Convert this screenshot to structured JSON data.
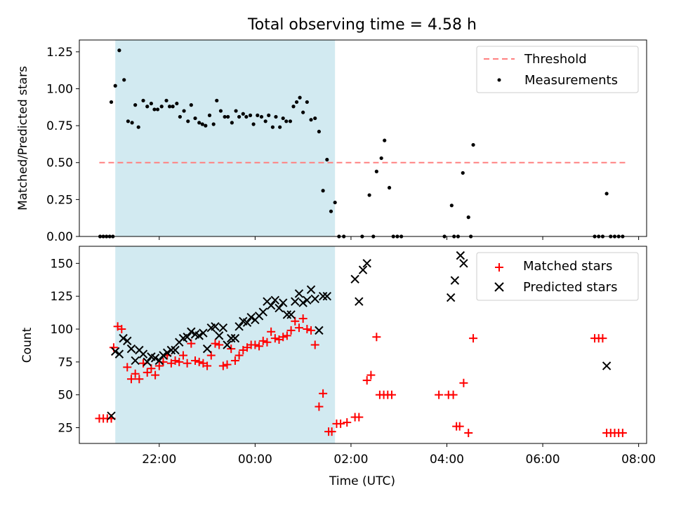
{
  "figure": {
    "title": "Total observing time = 4.58 h",
    "xlabel": "Time (UTC)",
    "shaded_interval": [
      "21:05",
      "01:40"
    ],
    "colors": {
      "shade": "#add8e6",
      "threshold": "#ff8080",
      "measurements": "#000000",
      "matched": "#ff0000",
      "predicted": "#000000"
    }
  },
  "chart_data": [
    {
      "type": "scatter",
      "ylabel": "Matched/Predicted stars",
      "xlim": [
        "20:20",
        "08:10"
      ],
      "ylim": [
        0,
        1.33
      ],
      "yticks": [
        0.0,
        0.25,
        0.5,
        0.75,
        1.0,
        1.25
      ],
      "ytick_labels": [
        "0.00",
        "0.25",
        "0.50",
        "0.75",
        "1.00",
        "1.25"
      ],
      "x_axis_labels_shown": false,
      "legend": "top-right",
      "threshold": {
        "name": "Threshold",
        "value": 0.5,
        "x": [
          "20:45",
          "07:45"
        ]
      },
      "series": [
        {
          "name": "Measurements",
          "marker": "dot",
          "points": [
            [
              "20:46",
              0
            ],
            [
              "20:50",
              0
            ],
            [
              "20:54",
              0
            ],
            [
              "20:58",
              0
            ],
            [
              "21:02",
              0
            ],
            [
              "21:00",
              0.91
            ],
            [
              "21:05",
              1.02
            ],
            [
              "21:10",
              1.26
            ],
            [
              "21:16",
              1.06
            ],
            [
              "21:21",
              0.78
            ],
            [
              "21:26",
              0.77
            ],
            [
              "21:30",
              0.89
            ],
            [
              "21:34",
              0.74
            ],
            [
              "21:40",
              0.92
            ],
            [
              "21:45",
              0.88
            ],
            [
              "21:50",
              0.9
            ],
            [
              "21:54",
              0.86
            ],
            [
              "21:58",
              0.86
            ],
            [
              "22:03",
              0.88
            ],
            [
              "22:09",
              0.92
            ],
            [
              "22:13",
              0.88
            ],
            [
              "22:17",
              0.88
            ],
            [
              "22:22",
              0.9
            ],
            [
              "22:26",
              0.81
            ],
            [
              "22:31",
              0.85
            ],
            [
              "22:36",
              0.78
            ],
            [
              "22:40",
              0.89
            ],
            [
              "22:45",
              0.8
            ],
            [
              "22:50",
              0.77
            ],
            [
              "22:54",
              0.76
            ],
            [
              "22:58",
              0.75
            ],
            [
              "23:03",
              0.82
            ],
            [
              "23:08",
              0.76
            ],
            [
              "23:12",
              0.92
            ],
            [
              "23:17",
              0.85
            ],
            [
              "23:22",
              0.81
            ],
            [
              "23:26",
              0.81
            ],
            [
              "23:31",
              0.77
            ],
            [
              "23:36",
              0.85
            ],
            [
              "23:40",
              0.81
            ],
            [
              "23:45",
              0.83
            ],
            [
              "23:49",
              0.81
            ],
            [
              "23:54",
              0.82
            ],
            [
              "23:58",
              0.76
            ],
            [
              "00:03",
              0.82
            ],
            [
              "00:08",
              0.81
            ],
            [
              "00:13",
              0.78
            ],
            [
              "00:17",
              0.82
            ],
            [
              "00:22",
              0.74
            ],
            [
              "00:26",
              0.81
            ],
            [
              "00:31",
              0.74
            ],
            [
              "00:35",
              0.8
            ],
            [
              "00:39",
              0.78
            ],
            [
              "00:44",
              0.78
            ],
            [
              "00:48",
              0.88
            ],
            [
              "00:52",
              0.91
            ],
            [
              "00:56",
              0.94
            ],
            [
              "01:00",
              0.84
            ],
            [
              "01:05",
              0.91
            ],
            [
              "01:10",
              0.79
            ],
            [
              "01:15",
              0.8
            ],
            [
              "01:20",
              0.71
            ],
            [
              "01:25",
              0.31
            ],
            [
              "01:30",
              0.52
            ],
            [
              "01:35",
              0.17
            ],
            [
              "01:40",
              0.23
            ],
            [
              "01:45",
              0
            ],
            [
              "01:51",
              0
            ],
            [
              "02:14",
              0
            ],
            [
              "02:23",
              0.28
            ],
            [
              "02:28",
              0
            ],
            [
              "02:32",
              0.44
            ],
            [
              "02:38",
              0.53
            ],
            [
              "02:42",
              0.65
            ],
            [
              "02:48",
              0.33
            ],
            [
              "02:53",
              0
            ],
            [
              "02:58",
              0
            ],
            [
              "03:03",
              0
            ],
            [
              "03:57",
              0
            ],
            [
              "04:06",
              0.21
            ],
            [
              "04:09",
              0
            ],
            [
              "04:14",
              0
            ],
            [
              "04:20",
              0.43
            ],
            [
              "04:27",
              0.13
            ],
            [
              "04:30",
              0
            ],
            [
              "04:33",
              0.62
            ],
            [
              "07:05",
              0
            ],
            [
              "07:10",
              0
            ],
            [
              "07:15",
              0
            ],
            [
              "07:20",
              0.29
            ],
            [
              "07:25",
              0
            ],
            [
              "07:30",
              0
            ],
            [
              "07:35",
              0
            ],
            [
              "07:40",
              0
            ]
          ]
        }
      ]
    },
    {
      "type": "scatter",
      "ylabel": "Count",
      "xlim": [
        "20:20",
        "08:10"
      ],
      "ylim": [
        13,
        163
      ],
      "yticks": [
        25,
        50,
        75,
        100,
        125,
        150
      ],
      "ytick_labels": [
        "25",
        "50",
        "75",
        "100",
        "125",
        "150"
      ],
      "xticks": [
        "22:00",
        "00:00",
        "02:00",
        "04:00",
        "06:00",
        "08:00"
      ],
      "xtick_labels": [
        "22:00",
        "00:00",
        "02:00",
        "04:00",
        "06:00",
        "08:00"
      ],
      "legend": "top-right",
      "series": [
        {
          "name": "Matched stars",
          "marker": "plus",
          "points": [
            [
              "20:45",
              32
            ],
            [
              "20:50",
              32
            ],
            [
              "20:55",
              32
            ],
            [
              "21:00",
              32
            ],
            [
              "21:03",
              86
            ],
            [
              "21:08",
              102
            ],
            [
              "21:13",
              100
            ],
            [
              "21:20",
              71
            ],
            [
              "21:25",
              62
            ],
            [
              "21:30",
              66
            ],
            [
              "21:35",
              62
            ],
            [
              "21:40",
              74
            ],
            [
              "21:45",
              67
            ],
            [
              "21:50",
              70
            ],
            [
              "21:55",
              65
            ],
            [
              "22:00",
              72
            ],
            [
              "22:05",
              75
            ],
            [
              "22:10",
              80
            ],
            [
              "22:15",
              74
            ],
            [
              "22:20",
              76
            ],
            [
              "22:25",
              75
            ],
            [
              "22:30",
              80
            ],
            [
              "22:35",
              74
            ],
            [
              "22:40",
              89
            ],
            [
              "22:45",
              76
            ],
            [
              "22:50",
              75
            ],
            [
              "22:55",
              74
            ],
            [
              "23:00",
              72
            ],
            [
              "23:05",
              80
            ],
            [
              "23:10",
              89
            ],
            [
              "23:15",
              88
            ],
            [
              "23:20",
              72
            ],
            [
              "23:25",
              73
            ],
            [
              "23:30",
              85
            ],
            [
              "23:35",
              76
            ],
            [
              "23:40",
              80
            ],
            [
              "23:45",
              84
            ],
            [
              "23:50",
              86
            ],
            [
              "23:55",
              88
            ],
            [
              "00:00",
              88
            ],
            [
              "00:05",
              87
            ],
            [
              "00:10",
              91
            ],
            [
              "00:15",
              90
            ],
            [
              "00:20",
              98
            ],
            [
              "00:25",
              93
            ],
            [
              "00:30",
              92
            ],
            [
              "00:35",
              94
            ],
            [
              "00:40",
              95
            ],
            [
              "00:45",
              99
            ],
            [
              "00:50",
              106
            ],
            [
              "00:55",
              101
            ],
            [
              "01:00",
              108
            ],
            [
              "01:05",
              100
            ],
            [
              "01:10",
              99
            ],
            [
              "01:15",
              88
            ],
            [
              "01:20",
              41
            ],
            [
              "01:25",
              51
            ],
            [
              "01:32",
              22
            ],
            [
              "01:36",
              22
            ],
            [
              "01:42",
              28
            ],
            [
              "01:47",
              28
            ],
            [
              "01:55",
              29
            ],
            [
              "02:05",
              33
            ],
            [
              "02:10",
              33
            ],
            [
              "02:20",
              61
            ],
            [
              "02:25",
              65
            ],
            [
              "02:32",
              94
            ],
            [
              "02:36",
              50
            ],
            [
              "02:41",
              50
            ],
            [
              "02:46",
              50
            ],
            [
              "02:51",
              50
            ],
            [
              "03:50",
              50
            ],
            [
              "04:02",
              50
            ],
            [
              "04:08",
              50
            ],
            [
              "04:12",
              26
            ],
            [
              "04:16",
              26
            ],
            [
              "04:21",
              59
            ],
            [
              "04:27",
              21
            ],
            [
              "04:33",
              93
            ],
            [
              "07:05",
              93
            ],
            [
              "07:10",
              93
            ],
            [
              "07:15",
              93
            ],
            [
              "07:20",
              21
            ],
            [
              "07:25",
              21
            ],
            [
              "07:30",
              21
            ],
            [
              "07:35",
              21
            ],
            [
              "07:40",
              21
            ]
          ]
        },
        {
          "name": "Predicted stars",
          "marker": "x",
          "points": [
            [
              "21:00",
              34
            ],
            [
              "21:05",
              83
            ],
            [
              "21:10",
              81
            ],
            [
              "21:15",
              93
            ],
            [
              "21:20",
              91
            ],
            [
              "21:25",
              85
            ],
            [
              "21:30",
              76
            ],
            [
              "21:35",
              84
            ],
            [
              "21:40",
              81
            ],
            [
              "21:45",
              75
            ],
            [
              "21:50",
              79
            ],
            [
              "21:55",
              78
            ],
            [
              "22:00",
              76
            ],
            [
              "22:05",
              80
            ],
            [
              "22:10",
              82
            ],
            [
              "22:15",
              84
            ],
            [
              "22:20",
              84
            ],
            [
              "22:25",
              90
            ],
            [
              "22:30",
              93
            ],
            [
              "22:35",
              94
            ],
            [
              "22:40",
              98
            ],
            [
              "22:45",
              96
            ],
            [
              "22:50",
              95
            ],
            [
              "22:55",
              97
            ],
            [
              "23:00",
              85
            ],
            [
              "23:05",
              101
            ],
            [
              "23:10",
              102
            ],
            [
              "23:15",
              95
            ],
            [
              "23:20",
              101
            ],
            [
              "23:25",
              88
            ],
            [
              "23:30",
              93
            ],
            [
              "23:35",
              93
            ],
            [
              "23:40",
              102
            ],
            [
              "23:45",
              106
            ],
            [
              "23:50",
              105
            ],
            [
              "23:55",
              109
            ],
            [
              "00:00",
              107
            ],
            [
              "00:05",
              110
            ],
            [
              "00:10",
              113
            ],
            [
              "00:15",
              121
            ],
            [
              "00:20",
              118
            ],
            [
              "00:25",
              122
            ],
            [
              "00:30",
              116
            ],
            [
              "00:35",
              120
            ],
            [
              "00:40",
              111
            ],
            [
              "00:45",
              111
            ],
            [
              "00:50",
              121
            ],
            [
              "00:55",
              127
            ],
            [
              "01:00",
              120
            ],
            [
              "01:05",
              122
            ],
            [
              "01:10",
              130
            ],
            [
              "01:15",
              123
            ],
            [
              "01:20",
              99
            ],
            [
              "01:25",
              125
            ],
            [
              "01:30",
              125
            ],
            [
              "02:05",
              138
            ],
            [
              "02:10",
              121
            ],
            [
              "02:15",
              145
            ],
            [
              "02:20",
              150
            ],
            [
              "04:05",
              124
            ],
            [
              "04:10",
              137
            ],
            [
              "04:17",
              156
            ],
            [
              "04:21",
              150
            ],
            [
              "07:20",
              72
            ]
          ]
        }
      ]
    }
  ]
}
